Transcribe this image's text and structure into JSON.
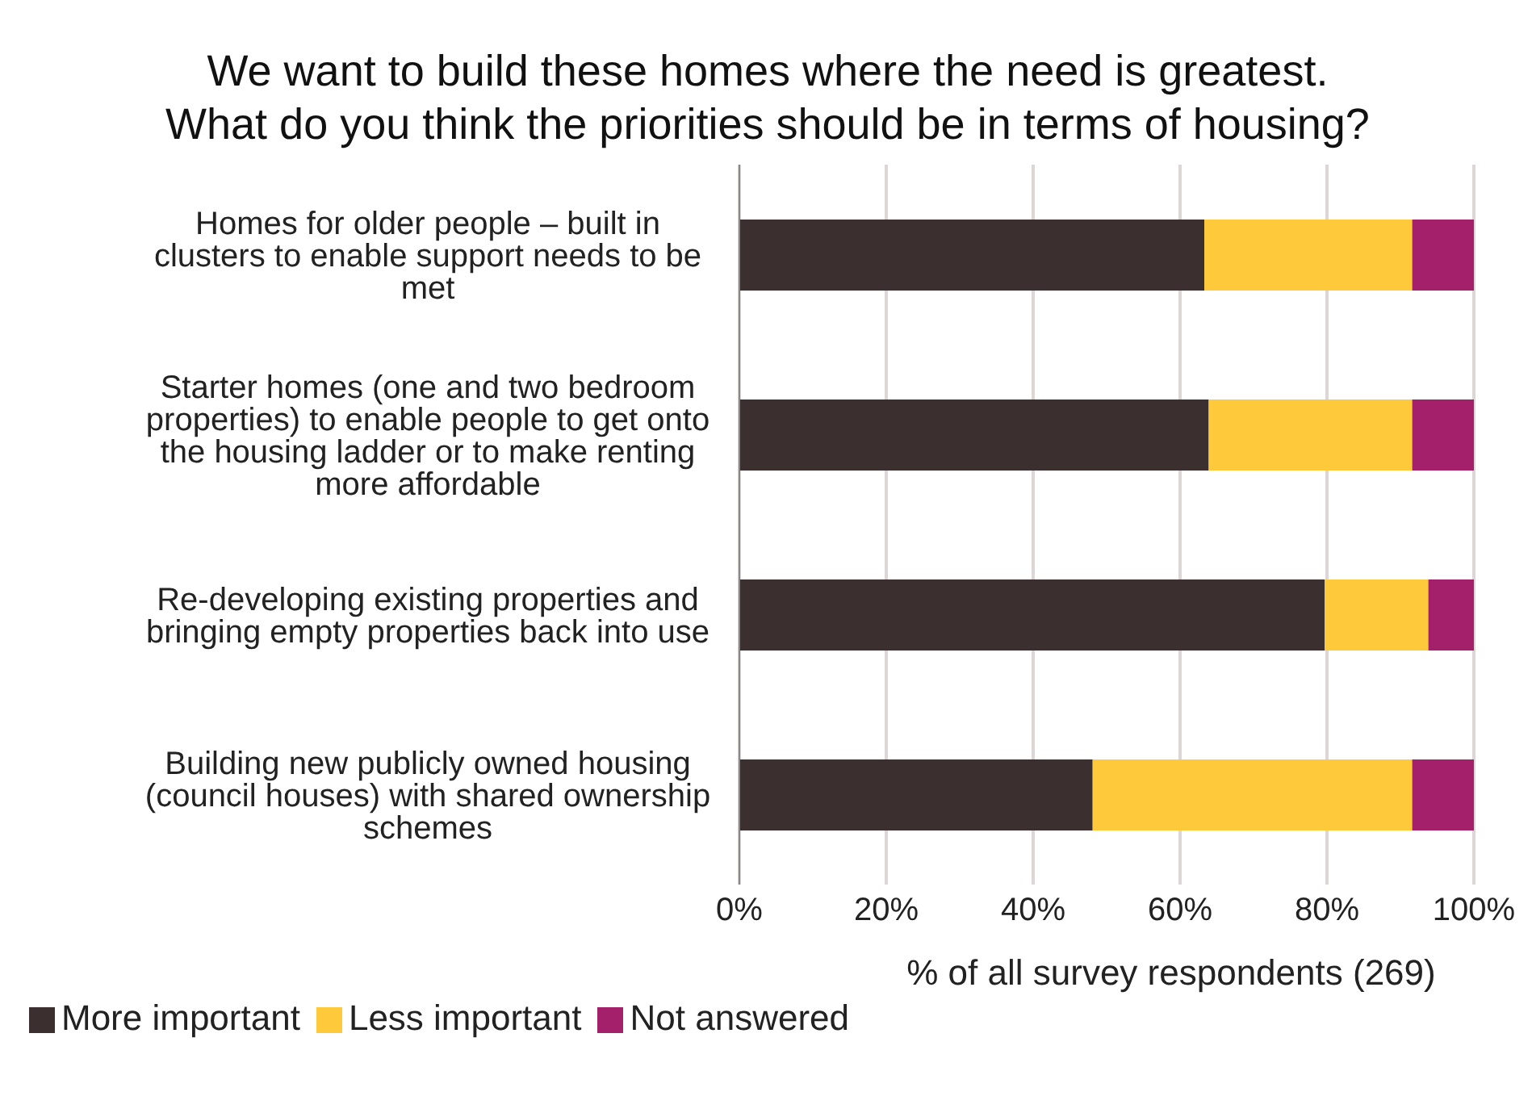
{
  "chart_data": {
    "type": "bar",
    "orientation": "horizontal",
    "stacked": true,
    "title": "We want to build these homes where the need is greatest.  What do you think the priorities should be in terms of housing?",
    "xlabel": "% of all survey respondents (269)",
    "categories": [
      "Homes for older people – built in clusters to enable support needs to be met",
      "Starter homes (one and two bedroom properties) to enable people to get onto the housing ladder or to make renting more affordable",
      "Re-developing existing properties and bringing empty properties back into use",
      "Building new publicly owned housing (council houses) with shared ownership schemes"
    ],
    "series": [
      {
        "name": "More important",
        "color": "#3c2f2f",
        "values": [
          63.3,
          63.9,
          79.7,
          48.1
        ]
      },
      {
        "name": "Less important",
        "color": "#fec93a",
        "values": [
          28.3,
          27.7,
          14.1,
          43.5
        ]
      },
      {
        "name": "Not answered",
        "color": "#a4206b",
        "values": [
          8.4,
          8.4,
          6.2,
          8.4
        ]
      }
    ],
    "xlim": [
      0,
      100
    ],
    "xticks": [
      {
        "value": 0,
        "label": "0%"
      },
      {
        "value": 20,
        "label": "20%"
      },
      {
        "value": 40,
        "label": "40%"
      },
      {
        "value": 60,
        "label": "60%"
      },
      {
        "value": 80,
        "label": "80%"
      },
      {
        "value": 100,
        "label": "100%"
      }
    ],
    "grid": "x",
    "legend": "bottom left"
  }
}
